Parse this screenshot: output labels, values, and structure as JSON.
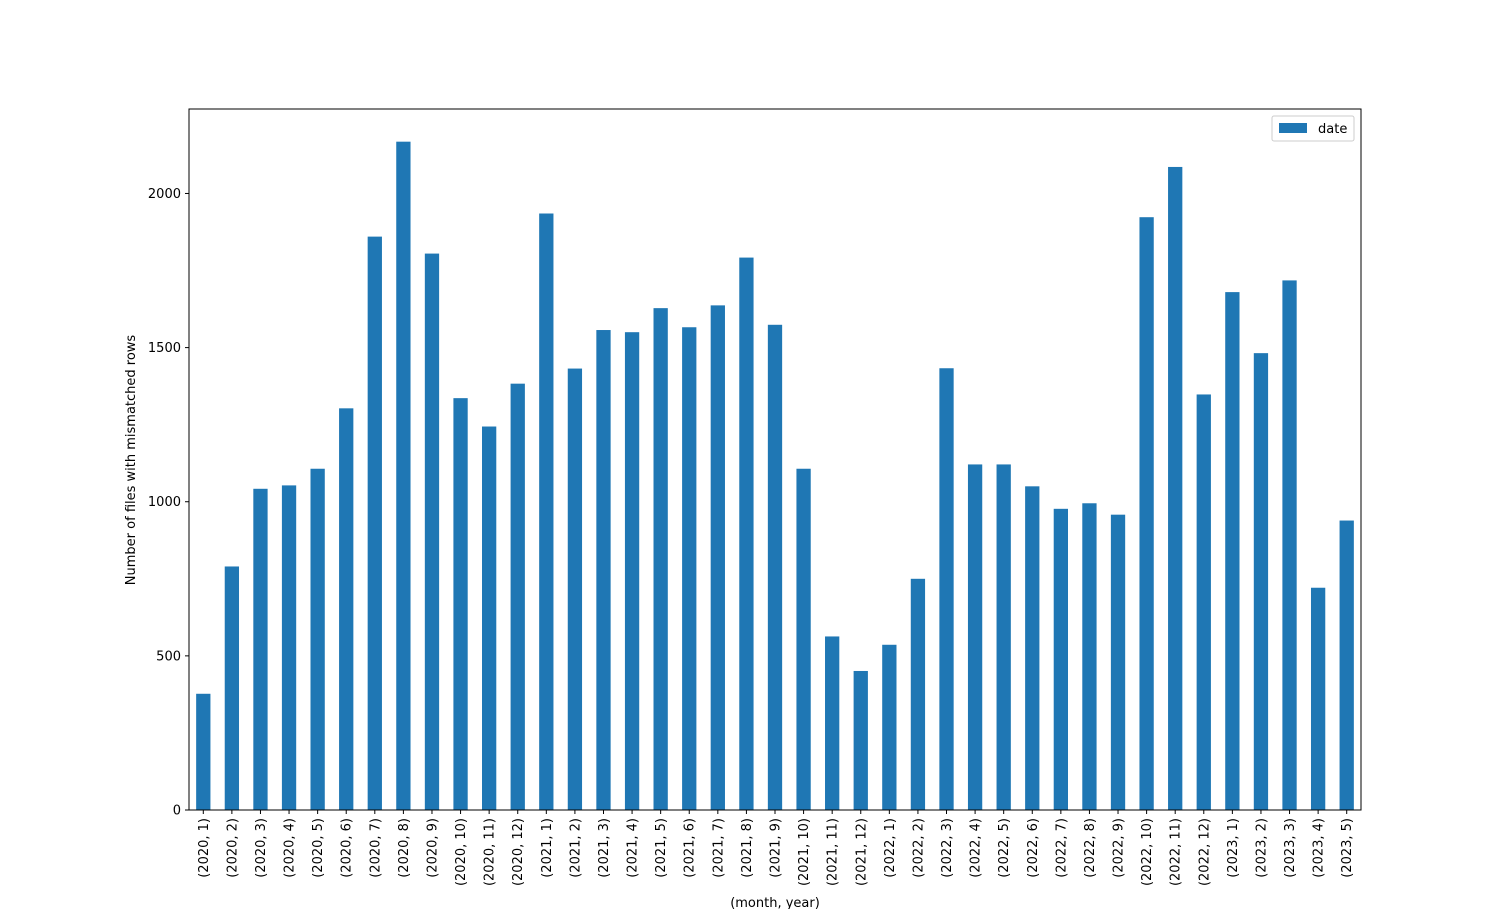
{
  "chart_data": {
    "type": "bar",
    "categories": [
      "(2020, 1)",
      "(2020, 2)",
      "(2020, 3)",
      "(2020, 4)",
      "(2020, 5)",
      "(2020, 6)",
      "(2020, 7)",
      "(2020, 8)",
      "(2020, 9)",
      "(2020, 10)",
      "(2020, 11)",
      "(2020, 12)",
      "(2021, 1)",
      "(2021, 2)",
      "(2021, 3)",
      "(2021, 4)",
      "(2021, 5)",
      "(2021, 6)",
      "(2021, 7)",
      "(2021, 8)",
      "(2021, 9)",
      "(2021, 10)",
      "(2021, 11)",
      "(2021, 12)",
      "(2022, 1)",
      "(2022, 2)",
      "(2022, 3)",
      "(2022, 4)",
      "(2022, 5)",
      "(2022, 6)",
      "(2022, 7)",
      "(2022, 8)",
      "(2022, 9)",
      "(2022, 10)",
      "(2022, 11)",
      "(2022, 12)",
      "(2023, 1)",
      "(2023, 2)",
      "(2023, 3)",
      "(2023, 4)",
      "(2023, 5)"
    ],
    "series": [
      {
        "name": "date",
        "values": [
          377,
          790,
          1042,
          1053,
          1107,
          1303,
          1860,
          2168,
          1805,
          1336,
          1244,
          1383,
          1935,
          1432,
          1557,
          1550,
          1628,
          1566,
          1637,
          1792,
          1574,
          1107,
          563,
          451,
          536,
          750,
          1433,
          1121,
          1121,
          1050,
          977,
          995,
          958,
          1923,
          2086,
          1348,
          1680,
          1482,
          1718,
          721,
          939
        ],
        "color": "#1f77b4"
      }
    ],
    "xlabel": "(month, year)",
    "ylabel": "Number of files with mismatched rows",
    "ylim": [
      0,
      2274
    ],
    "yticks": [
      0,
      500,
      1000,
      1500,
      2000
    ],
    "grid": false,
    "legend": "top-right"
  }
}
